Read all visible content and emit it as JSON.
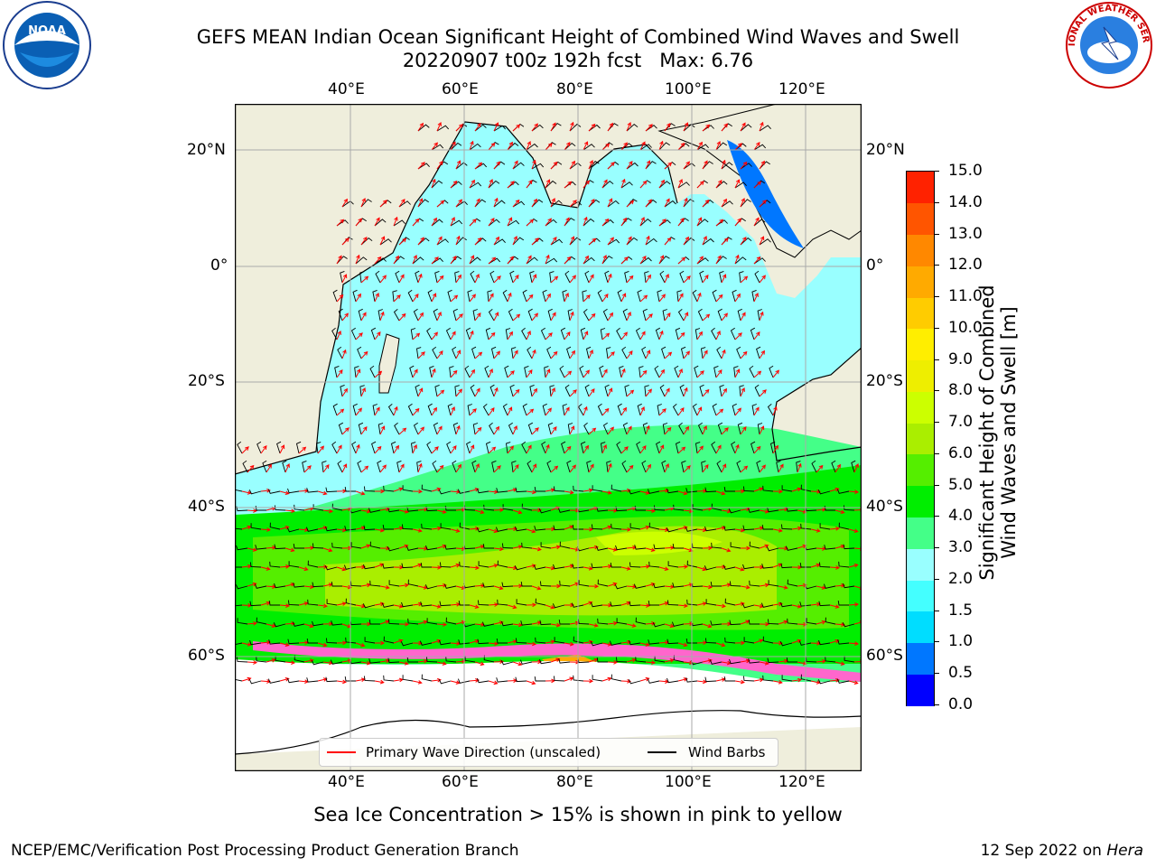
{
  "header": {
    "title_line1": "GEFS MEAN Indian Ocean Significant Height of Combined Wind Waves and Swell",
    "title_line2": "20220907 t00z 192h fcst   Max: 6.76"
  },
  "logos": {
    "noaa_text": "NOAA",
    "nws_text": "NATIONAL WEATHER SERVICE"
  },
  "map": {
    "lon_labels": [
      "40°E",
      "60°E",
      "80°E",
      "100°E",
      "120°E"
    ],
    "lat_labels": [
      "20°N",
      "0°",
      "20°S",
      "40°S",
      "60°S"
    ],
    "legend": {
      "primary_wave": "Primary Wave Direction (unscaled)",
      "wind_barbs": "Wind Barbs",
      "primary_wave_color": "#ff0000",
      "wind_barbs_color": "#000000"
    },
    "land_color": "#efeedc",
    "ice_color": "#ff66cc"
  },
  "colorbar": {
    "label_line1": "Significant Height of Combined",
    "label_line2": "Wind Waves and Swell [m]",
    "ticks": [
      "15.0",
      "14.0",
      "13.0",
      "12.0",
      "11.0",
      "10.0",
      "9.0",
      "8.0",
      "7.0",
      "6.0",
      "5.0",
      "4.0",
      "3.0",
      "2.0",
      "1.5",
      "1.0",
      "0.5",
      "0.0"
    ],
    "colors": [
      "#0000ff",
      "#0077ff",
      "#00ddff",
      "#44ffff",
      "#99ffff",
      "#44ff88",
      "#00ee00",
      "#55ee00",
      "#aaee00",
      "#ccff00",
      "#eeee00",
      "#ffee00",
      "#ffcc00",
      "#ffaa00",
      "#ff8800",
      "#ff5500",
      "#ff2200"
    ]
  },
  "caption": "Sea Ice Concentration > 15% is shown in pink to yellow",
  "footer": {
    "left": "NCEP/EMC/Verification Post Processing Product Generation Branch",
    "right_date": "12 Sep 2022 on ",
    "right_host": "Hera"
  }
}
